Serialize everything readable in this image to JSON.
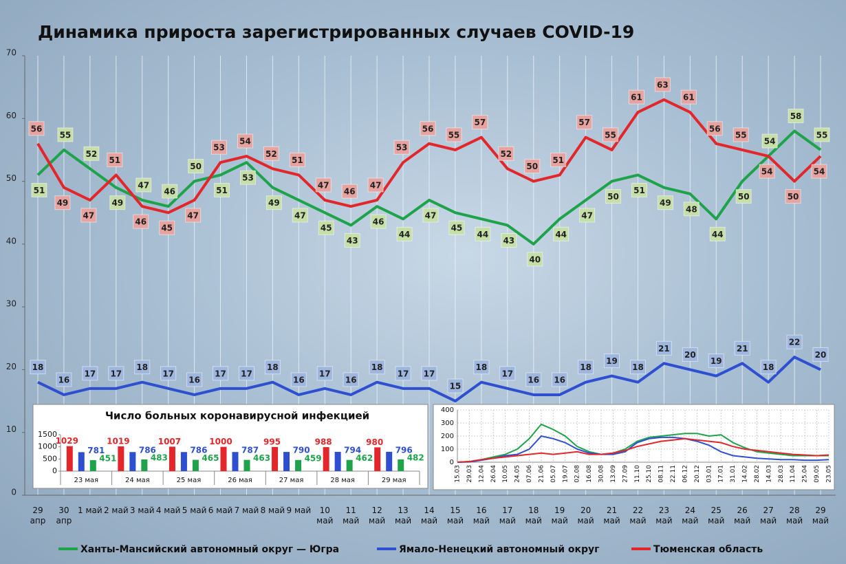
{
  "chart_data": [
    {
      "type": "line",
      "title": "Динамика прироста зарегистрированных случаев COVID-19",
      "categories": [
        "29 апр",
        "30 апр",
        "1 май",
        "2 май",
        "3 май",
        "4 май",
        "5 май",
        "6 май",
        "7 май",
        "8 май",
        "9 май",
        "10 май",
        "11 май",
        "12 май",
        "13 май",
        "14 май",
        "15 май",
        "16 май",
        "17 май",
        "18 май",
        "19 май",
        "20 май",
        "21 май",
        "22 май",
        "23 май",
        "24 май",
        "25 май",
        "26 май",
        "27 май",
        "28 май",
        "29 май"
      ],
      "series": [
        {
          "name": "Ханты-Мансийский автономный округ — Югра",
          "color": "#1ea34a",
          "label_color": "#c6dfa8",
          "values": [
            51,
            55,
            52,
            49,
            47,
            46,
            50,
            51,
            53,
            49,
            47,
            45,
            43,
            46,
            44,
            47,
            45,
            44,
            43,
            40,
            44,
            47,
            50,
            51,
            49,
            48,
            44,
            50,
            54,
            58,
            55
          ]
        },
        {
          "name": "Ямало-Ненецкий автономный округ",
          "color": "#2d4fd0",
          "label_color": "#9fb6de",
          "values": [
            18,
            16,
            17,
            17,
            18,
            17,
            16,
            17,
            17,
            18,
            16,
            17,
            16,
            18,
            17,
            17,
            15,
            18,
            17,
            16,
            16,
            18,
            19,
            18,
            21,
            20,
            19,
            21,
            18,
            22,
            20
          ]
        },
        {
          "name": "Тюменская область",
          "color": "#e2262a",
          "label_color": "#e6a3a0",
          "values": [
            56,
            49,
            47,
            51,
            46,
            45,
            47,
            53,
            54,
            52,
            51,
            47,
            46,
            47,
            53,
            56,
            55,
            57,
            52,
            50,
            51,
            57,
            55,
            61,
            63,
            61,
            56,
            55,
            54,
            50,
            54
          ]
        }
      ],
      "ylim": [
        0,
        70
      ],
      "yticks": [
        0,
        10,
        20,
        30,
        40,
        50,
        60,
        70
      ],
      "grid": "x",
      "legend": "bottom"
    },
    {
      "type": "bar",
      "title": "Число больных коронавирусной инфекцией",
      "categories": [
        "23 мая",
        "24 мая",
        "25 мая",
        "26 мая",
        "27 мая",
        "28 мая",
        "29 мая"
      ],
      "series": [
        {
          "color": "#e2262a",
          "values": [
            1029,
            1019,
            1007,
            1000,
            995,
            988,
            980
          ]
        },
        {
          "color": "#2d4fd0",
          "values": [
            781,
            786,
            786,
            787,
            790,
            794,
            796
          ]
        },
        {
          "color": "#1ea34a",
          "values": [
            451,
            483,
            465,
            463,
            459,
            462,
            482
          ]
        }
      ],
      "ylim": [
        0,
        1500
      ],
      "yticks": [
        0,
        500,
        1000,
        1500
      ]
    },
    {
      "type": "line",
      "categories": [
        "15.03",
        "29.03",
        "12.04",
        "26.04",
        "10.05",
        "24.05",
        "07.06",
        "21.06",
        "05.07",
        "19.07",
        "02.08",
        "16.08",
        "30.08",
        "13.09",
        "27.09",
        "11.10",
        "25.10",
        "08.11",
        "22.11",
        "06.12",
        "20.12",
        "03.01",
        "17.01",
        "31.01",
        "14.02",
        "28.02",
        "14.03",
        "28.03",
        "11.04",
        "25.04",
        "09.05",
        "23.05"
      ],
      "series": [
        {
          "color": "#1ea34a",
          "values": [
            0,
            5,
            20,
            40,
            60,
            100,
            180,
            290,
            250,
            200,
            120,
            80,
            60,
            70,
            100,
            160,
            190,
            200,
            210,
            220,
            220,
            200,
            210,
            150,
            110,
            80,
            70,
            60,
            50,
            50,
            50,
            50
          ]
        },
        {
          "color": "#2d4fd0",
          "values": [
            0,
            2,
            15,
            30,
            50,
            60,
            100,
            200,
            180,
            150,
            100,
            70,
            60,
            60,
            80,
            150,
            180,
            190,
            190,
            180,
            160,
            130,
            80,
            50,
            40,
            30,
            25,
            20,
            20,
            15,
            15,
            20
          ]
        },
        {
          "color": "#e2262a",
          "values": [
            0,
            5,
            20,
            30,
            40,
            50,
            60,
            70,
            60,
            70,
            80,
            60,
            60,
            70,
            90,
            120,
            140,
            160,
            170,
            180,
            170,
            160,
            150,
            120,
            100,
            90,
            80,
            70,
            60,
            55,
            50,
            55
          ]
        }
      ],
      "ylim": [
        0,
        400
      ],
      "yticks": [
        0,
        100,
        200,
        300,
        400
      ],
      "grid": true
    }
  ]
}
